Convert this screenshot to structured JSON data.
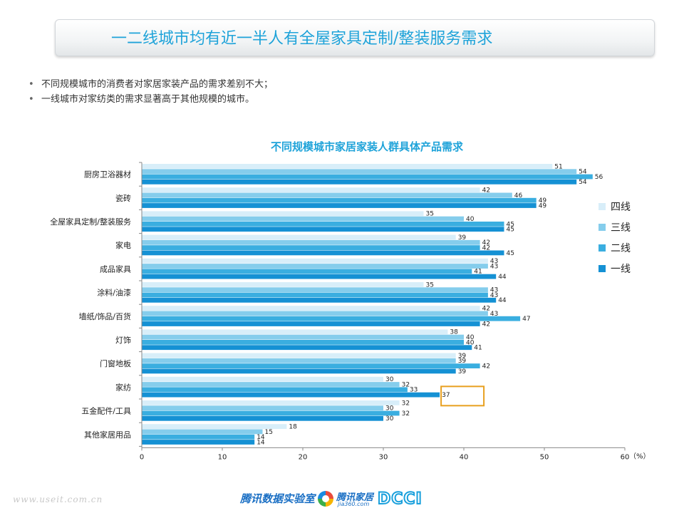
{
  "header": {
    "title": "一二线城市均有近一半人有全屋家具定制/整装服务需求"
  },
  "bullets": [
    "不同规模城市的消费者对家居家装产品的需求差别不大；",
    "一线城市对家纺类的需求显著高于其他规模的城市。"
  ],
  "chart_data": {
    "type": "bar",
    "orientation": "horizontal",
    "title": "不同规模城市家居家装人群具体产品需求",
    "unit": "（%）",
    "categories": [
      "厨房卫浴器材",
      "瓷砖",
      "全屋家具定制/整装服务",
      "家电",
      "成品家具",
      "涂料/油漆",
      "墙纸/饰品/百货",
      "灯饰",
      "门窗地板",
      "家纺",
      "五金配件/工具",
      "其他家居用品"
    ],
    "series": [
      {
        "name": "四线",
        "color": "#d8eef9",
        "values": [
          51,
          42,
          35,
          39,
          43,
          35,
          42,
          38,
          39,
          30,
          32,
          18
        ]
      },
      {
        "name": "三线",
        "color": "#85cdec",
        "values": [
          54,
          46,
          40,
          42,
          43,
          43,
          43,
          40,
          39,
          32,
          30,
          15
        ]
      },
      {
        "name": "二线",
        "color": "#3aaee0",
        "values": [
          56,
          49,
          45,
          42,
          41,
          43,
          47,
          40,
          42,
          33,
          32,
          14
        ]
      },
      {
        "name": "一线",
        "color": "#1591d4",
        "values": [
          54,
          49,
          45,
          45,
          44,
          44,
          42,
          41,
          39,
          37,
          30,
          14
        ]
      }
    ],
    "xlim": [
      0,
      60
    ],
    "xticks": [
      0,
      10,
      20,
      30,
      40,
      50,
      60
    ],
    "grid": false,
    "legend_position": "right",
    "highlight": {
      "category": "家纺",
      "series": "一线",
      "color": "#e8a020"
    }
  },
  "footer": {
    "url": "www.useit.com.cn",
    "logo_tencent": "腾讯数据实验室",
    "logo_jiaju": "腾讯家居",
    "logo_jiaju_domain": "jia360.com",
    "logo_dcci": "DCCI"
  }
}
